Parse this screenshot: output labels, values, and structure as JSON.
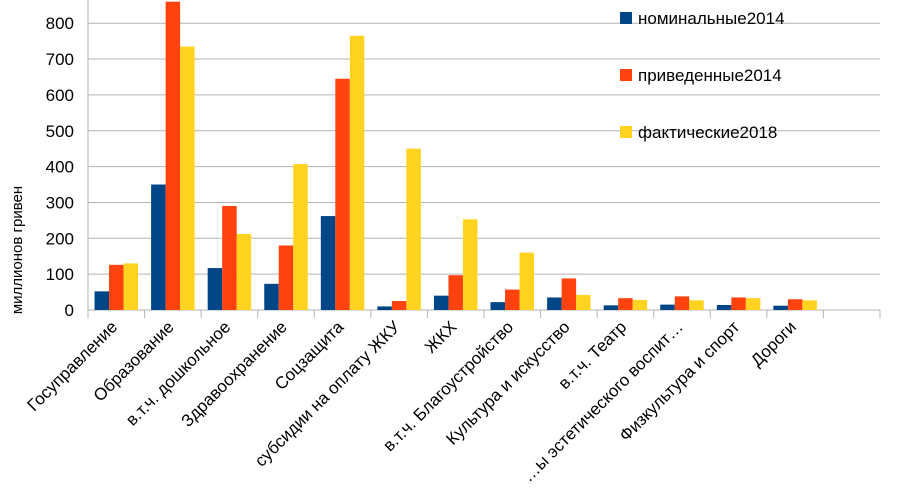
{
  "chart_data": {
    "type": "bar",
    "title": "",
    "xlabel": "",
    "ylabel": "миллионов гривен",
    "ylim": [
      0,
      860
    ],
    "yticks": [
      0,
      100,
      200,
      300,
      400,
      500,
      600,
      700,
      800
    ],
    "grid": true,
    "legend_position": "top-right",
    "categories": [
      "Госуправление",
      "Образование",
      "в.т.ч. дошкольное",
      "Здравоохранение",
      "Соцзащита",
      "субсидии на оплату ЖКУ",
      "ЖКХ",
      "в.т.ч. Благоустройство",
      "Культура и искусство",
      "в.т.ч. Театр",
      "…ы эстетического воспит…",
      "Физкультура и спорт",
      "Дороги"
    ],
    "series": [
      {
        "name": "номинальные2014",
        "color": "#004586",
        "values": [
          52,
          350,
          117,
          73,
          262,
          10,
          40,
          22,
          35,
          13,
          15,
          14,
          12
        ]
      },
      {
        "name": "приведенные2014",
        "color": "#ff420e",
        "values": [
          126,
          860,
          290,
          180,
          645,
          25,
          97,
          57,
          88,
          33,
          38,
          35,
          30
        ]
      },
      {
        "name": "фактические2018",
        "color": "#ffd320",
        "values": [
          130,
          735,
          212,
          407,
          765,
          450,
          253,
          160,
          42,
          28,
          27,
          33,
          27
        ]
      }
    ]
  }
}
